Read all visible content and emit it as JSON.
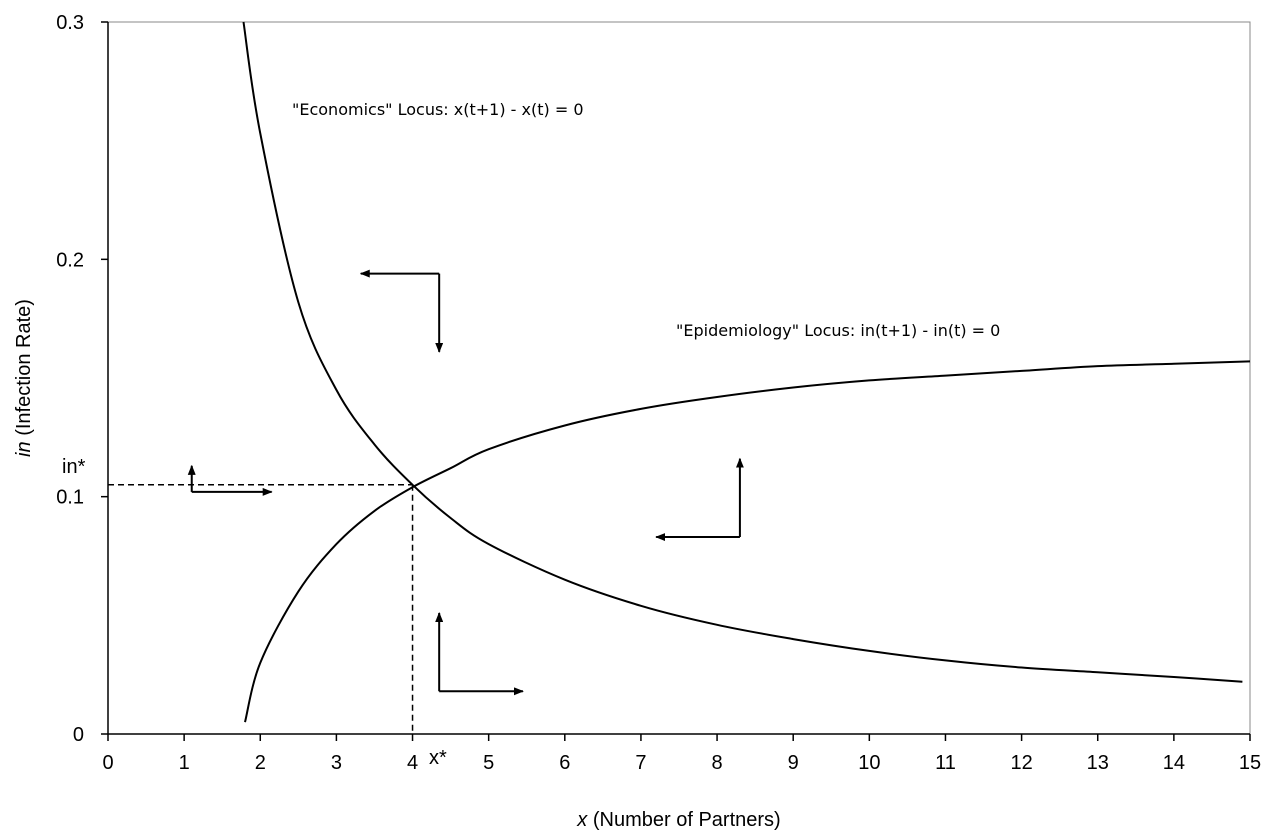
{
  "chart_data": {
    "type": "line",
    "title": "",
    "xlabel": {
      "var": "x",
      "rest": " (Number of Partners)"
    },
    "ylabel": {
      "var": "in",
      "rest": " (Infection Rate)"
    },
    "xlim": [
      0,
      15
    ],
    "ylim": [
      0,
      0.3
    ],
    "xticks": [
      "0",
      "1",
      "2",
      "3",
      "4",
      "5",
      "6",
      "7",
      "8",
      "9",
      "10",
      "11",
      "12",
      "13",
      "14",
      "15"
    ],
    "yticks": [
      {
        "value": 0,
        "label": "0"
      },
      {
        "value": 0.1,
        "label": "0.1"
      },
      {
        "value": 0.2,
        "label": "0.2"
      },
      {
        "value": 0.3,
        "label": "0.3"
      }
    ],
    "grid": false,
    "series": [
      {
        "label": "\"Economics\" Locus:  x(t+1) - x(t) = 0",
        "points": [
          [
            1.78,
            0.3
          ],
          [
            2.0,
            0.253
          ],
          [
            2.5,
            0.182
          ],
          [
            3.0,
            0.145
          ],
          [
            3.5,
            0.122
          ],
          [
            4.0,
            0.105
          ],
          [
            4.5,
            0.091
          ],
          [
            5.0,
            0.08
          ],
          [
            6.0,
            0.065
          ],
          [
            7.0,
            0.054
          ],
          [
            8.0,
            0.046
          ],
          [
            9.0,
            0.04
          ],
          [
            10.0,
            0.035
          ],
          [
            11.0,
            0.031
          ],
          [
            12.0,
            0.028
          ],
          [
            13.0,
            0.026
          ],
          [
            14.0,
            0.024
          ],
          [
            14.9,
            0.022
          ]
        ]
      },
      {
        "label": "\"Epidemiology\" Locus:  in(t+1) - in(t) = 0",
        "points": [
          [
            1.8,
            0.005
          ],
          [
            2.0,
            0.03
          ],
          [
            2.5,
            0.06
          ],
          [
            3.0,
            0.08
          ],
          [
            3.5,
            0.094
          ],
          [
            4.0,
            0.104
          ],
          [
            4.5,
            0.112
          ],
          [
            5.0,
            0.12
          ],
          [
            6.0,
            0.13
          ],
          [
            7.0,
            0.137
          ],
          [
            8.0,
            0.142
          ],
          [
            9.0,
            0.146
          ],
          [
            10.0,
            0.149
          ],
          [
            11.0,
            0.151
          ],
          [
            12.0,
            0.153
          ],
          [
            13.0,
            0.155
          ],
          [
            14.0,
            0.156
          ],
          [
            15.0,
            0.157
          ]
        ]
      }
    ],
    "equilibrium": {
      "x": 4.0,
      "y": 0.105,
      "x_label": "x*",
      "y_label": "in*"
    },
    "phase_arrows": [
      {
        "corner": [
          1.1,
          0.102
        ],
        "h_end": 2.15,
        "v_end": 0.113
      },
      {
        "corner": [
          4.35,
          0.194
        ],
        "h_end": 3.32,
        "v_end": 0.161
      },
      {
        "corner": [
          8.3,
          0.083
        ],
        "h_end": 7.2,
        "v_end": 0.116
      },
      {
        "corner": [
          4.35,
          0.018
        ],
        "h_end": 5.45,
        "v_end": 0.051
      }
    ]
  }
}
